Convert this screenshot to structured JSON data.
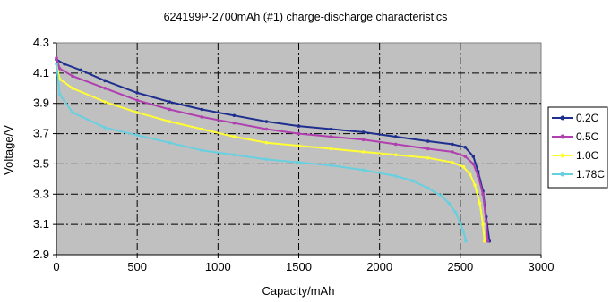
{
  "chart_data": {
    "type": "line",
    "title": "624199P-2700mAh (#1) charge-discharge characteristics",
    "xlabel": "Capacity/mAh",
    "ylabel": "Voltage/V",
    "xlim": [
      0,
      3000
    ],
    "ylim": [
      2.9,
      4.3
    ],
    "xticks": [
      "0",
      "500",
      "1000",
      "1500",
      "2000",
      "2500",
      "3000"
    ],
    "yticks": [
      "2.9",
      "3.1",
      "3.3",
      "3.5",
      "3.7",
      "3.9",
      "4.1",
      "4.3"
    ],
    "grid": true,
    "background": "#c0c0c0",
    "legend_position": "right",
    "series": [
      {
        "name": "0.2C",
        "color": "#1f2f8f",
        "marker": "diamond",
        "x": [
          0,
          50,
          150,
          300,
          500,
          700,
          900,
          1100,
          1300,
          1500,
          1700,
          1900,
          2100,
          2300,
          2450,
          2530,
          2580,
          2610,
          2640,
          2660,
          2680
        ],
        "y": [
          4.19,
          4.16,
          4.12,
          4.05,
          3.97,
          3.91,
          3.86,
          3.82,
          3.78,
          3.75,
          3.73,
          3.71,
          3.68,
          3.65,
          3.63,
          3.61,
          3.55,
          3.45,
          3.32,
          3.15,
          2.99
        ]
      },
      {
        "name": "0.5C",
        "color": "#b040b0",
        "marker": "square",
        "x": [
          0,
          20,
          100,
          300,
          500,
          700,
          900,
          1100,
          1300,
          1500,
          1700,
          1900,
          2100,
          2300,
          2450,
          2530,
          2580,
          2610,
          2640,
          2660,
          2670
        ],
        "y": [
          4.2,
          4.13,
          4.08,
          4.0,
          3.92,
          3.86,
          3.81,
          3.77,
          3.73,
          3.7,
          3.68,
          3.66,
          3.63,
          3.6,
          3.58,
          3.55,
          3.5,
          3.42,
          3.3,
          3.12,
          2.99
        ]
      },
      {
        "name": "1.0C",
        "color": "#ffff33",
        "marker": "triangle",
        "x": [
          0,
          20,
          100,
          300,
          500,
          700,
          900,
          1100,
          1300,
          1500,
          1700,
          1900,
          2100,
          2300,
          2450,
          2520,
          2560,
          2590,
          2620,
          2640,
          2650
        ],
        "y": [
          4.16,
          4.06,
          4.0,
          3.91,
          3.84,
          3.78,
          3.73,
          3.68,
          3.64,
          3.62,
          3.6,
          3.58,
          3.56,
          3.54,
          3.51,
          3.48,
          3.43,
          3.36,
          3.24,
          3.1,
          2.99
        ]
      },
      {
        "name": "1.78C",
        "color": "#66d0e0",
        "marker": "x",
        "x": [
          0,
          20,
          100,
          300,
          500,
          700,
          900,
          1100,
          1300,
          1500,
          1700,
          1900,
          2100,
          2200,
          2300,
          2380,
          2430,
          2470,
          2500,
          2520,
          2535
        ],
        "y": [
          4.16,
          3.96,
          3.84,
          3.74,
          3.69,
          3.64,
          3.59,
          3.56,
          3.53,
          3.51,
          3.49,
          3.46,
          3.42,
          3.39,
          3.34,
          3.29,
          3.24,
          3.18,
          3.11,
          3.05,
          2.99
        ]
      }
    ]
  }
}
